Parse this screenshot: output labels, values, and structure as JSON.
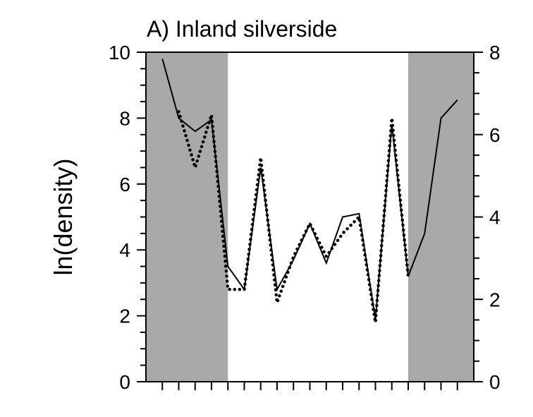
{
  "chart_data": {
    "type": "line",
    "title": "A) Inland silverside",
    "ylabel": "ln(density)",
    "xlabel": "",
    "ylim": [
      0,
      10
    ],
    "y2lim": [
      0,
      8
    ],
    "yticks": [
      "0",
      "2",
      "4",
      "6",
      "8",
      "10"
    ],
    "y2ticks": [
      "0",
      "2",
      "4",
      "6",
      "8"
    ],
    "x": [
      1,
      2,
      3,
      4,
      5,
      6,
      7,
      8,
      9,
      10,
      11,
      12,
      13,
      14,
      15,
      16,
      17,
      18,
      19
    ],
    "xlim": [
      0,
      20
    ],
    "shaded_x_ranges": [
      [
        0,
        5
      ],
      [
        16,
        20
      ]
    ],
    "shade_color": "#a9a9a9",
    "grid": false,
    "legend": "none",
    "series": [
      {
        "style": "solid",
        "axis": "left",
        "values": [
          9.8,
          8.0,
          7.6,
          7.95,
          3.5,
          2.8,
          6.5,
          2.8,
          3.7,
          4.8,
          3.6,
          5.0,
          5.1,
          1.9,
          7.8,
          3.2,
          4.5,
          8.0,
          8.55
        ]
      },
      {
        "style": "dotted",
        "axis": "left",
        "values": [
          null,
          8.2,
          6.5,
          8.1,
          2.8,
          2.8,
          6.8,
          2.4,
          3.8,
          4.8,
          3.8,
          4.5,
          5.0,
          1.8,
          8.0,
          3.2,
          null,
          null,
          null
        ]
      }
    ]
  }
}
